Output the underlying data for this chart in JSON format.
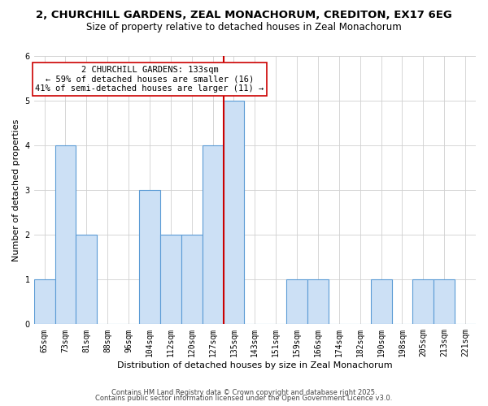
{
  "title1": "2, CHURCHILL GARDENS, ZEAL MONACHORUM, CREDITON, EX17 6EG",
  "title2": "Size of property relative to detached houses in Zeal Monachorum",
  "xlabel": "Distribution of detached houses by size in Zeal Monachorum",
  "ylabel": "Number of detached properties",
  "bin_labels": [
    "65sqm",
    "73sqm",
    "81sqm",
    "88sqm",
    "96sqm",
    "104sqm",
    "112sqm",
    "120sqm",
    "127sqm",
    "135sqm",
    "143sqm",
    "151sqm",
    "159sqm",
    "166sqm",
    "174sqm",
    "182sqm",
    "190sqm",
    "198sqm",
    "205sqm",
    "213sqm",
    "221sqm"
  ],
  "bin_edges": [
    0,
    1,
    2,
    3,
    4,
    5,
    6,
    7,
    8,
    9,
    10,
    11,
    12,
    13,
    14,
    15,
    16,
    17,
    18,
    19,
    20,
    21
  ],
  "counts": [
    1,
    4,
    2,
    0,
    0,
    3,
    2,
    2,
    4,
    5,
    0,
    0,
    1,
    1,
    0,
    0,
    1,
    0,
    1,
    1,
    0
  ],
  "subject_bar_index": 9,
  "bar_color": "#cce0f5",
  "bar_edge_color": "#5b9bd5",
  "subject_line_color": "#cc0000",
  "annotation_line1": "2 CHURCHILL GARDENS: 133sqm",
  "annotation_line2": "← 59% of detached houses are smaller (16)",
  "annotation_line3": "41% of semi-detached houses are larger (11) →",
  "annotation_box_edge": "#cc0000",
  "footer1": "Contains HM Land Registry data © Crown copyright and database right 2025.",
  "footer2": "Contains public sector information licensed under the Open Government Licence v3.0.",
  "ylim": [
    0,
    6
  ],
  "yticks": [
    0,
    1,
    2,
    3,
    4,
    5,
    6
  ],
  "bg_color": "#ffffff",
  "grid_color": "#d0d0d0",
  "title1_fontsize": 9.5,
  "title2_fontsize": 8.5,
  "ylabel_fontsize": 8,
  "xlabel_fontsize": 8,
  "tick_fontsize": 7,
  "footer_fontsize": 6,
  "annotation_fontsize": 7.5
}
